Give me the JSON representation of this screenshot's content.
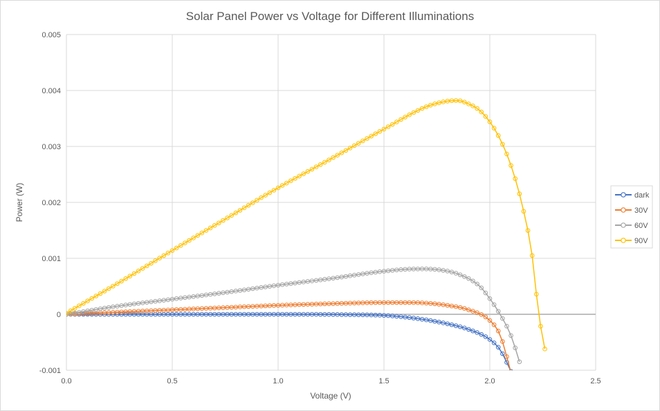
{
  "chart_data": {
    "type": "line",
    "title": "Solar Panel Power vs Voltage for Different Illuminations",
    "xlabel": "Voltage (V)",
    "ylabel": "Power (W)",
    "xlim": [
      0,
      2.5
    ],
    "ylim": [
      -0.001,
      0.005
    ],
    "xticks": [
      "0.0",
      "0.5",
      "1.0",
      "1.5",
      "2.0",
      "2.5"
    ],
    "yticks": [
      "-0.001",
      "0",
      "0.001",
      "0.002",
      "0.003",
      "0.004",
      "0.005"
    ],
    "grid": true,
    "markers": "circle",
    "legend_position": "right",
    "series": [
      {
        "name": "dark",
        "color": "#4472C4",
        "x": [
          0.0,
          0.5,
          1.0,
          1.3,
          1.5,
          1.6,
          1.7,
          1.8,
          1.9,
          2.0,
          2.05,
          2.1
        ],
        "y": [
          0.0,
          0.0,
          0.0,
          -5e-06,
          -2e-05,
          -5e-05,
          -0.0001,
          -0.00017,
          -0.00027,
          -0.00045,
          -0.00064,
          -0.00102
        ]
      },
      {
        "name": "30V",
        "color": "#ED7D31",
        "x": [
          0.0,
          0.25,
          0.5,
          0.75,
          1.0,
          1.25,
          1.5,
          1.6,
          1.7,
          1.8,
          1.9,
          2.0,
          2.05,
          2.1
        ],
        "y": [
          0.0,
          4e-05,
          8e-05,
          0.00012,
          0.00016,
          0.00019,
          0.00021,
          0.00021,
          0.0002,
          0.00016,
          8e-05,
          -0.00011,
          -0.00038,
          -0.00104
        ]
      },
      {
        "name": "60V",
        "color": "#A5A5A5",
        "x": [
          0.0,
          0.25,
          0.5,
          0.75,
          1.0,
          1.25,
          1.5,
          1.65,
          1.75,
          1.85,
          1.95,
          2.0,
          2.05,
          2.1,
          2.15
        ],
        "y": [
          0.0,
          0.00015,
          0.00027,
          0.00039,
          0.00052,
          0.00064,
          0.00077,
          0.00081,
          0.0008,
          0.00072,
          0.00051,
          0.00028,
          -1e-05,
          -0.00038,
          -0.00097
        ]
      },
      {
        "name": "90V",
        "color": "#FFC000",
        "x": [
          0.0,
          0.25,
          0.5,
          0.75,
          1.0,
          1.25,
          1.5,
          1.7,
          1.8,
          1.85,
          1.9,
          1.95,
          2.0,
          2.05,
          2.1,
          2.15,
          2.2,
          2.23,
          2.26
        ],
        "y": [
          2e-05,
          0.00057,
          0.00114,
          0.0017,
          0.00226,
          0.00278,
          0.00331,
          0.00371,
          0.00381,
          0.00382,
          0.00376,
          0.00365,
          0.00344,
          0.00312,
          0.00266,
          0.002,
          0.00105,
          3e-05,
          -0.00062
        ]
      }
    ]
  }
}
